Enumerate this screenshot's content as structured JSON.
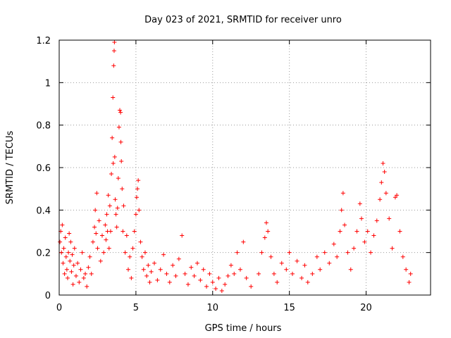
{
  "chart_data": {
    "type": "scatter",
    "title": "Day 023 of 2021, SRMTID for receiver unro",
    "xlabel": "GPS time / hours",
    "ylabel": "SRMTID / TECUs",
    "xlim": [
      0,
      24.2
    ],
    "ylim": [
      0,
      1.2
    ],
    "x_ticks": [
      0,
      5,
      10,
      15,
      20
    ],
    "y_ticks": [
      0,
      0.2,
      0.4,
      0.6,
      0.8,
      1.0,
      1.2
    ],
    "x_tick_labels": [
      "0",
      "5",
      "10",
      "15",
      "20"
    ],
    "y_tick_labels": [
      "0",
      "0.2",
      "0.4",
      "0.6",
      "0.8",
      "1",
      "1.2"
    ],
    "grid": true,
    "marker": "plus",
    "color": "#ff0000",
    "series": [
      {
        "name": "SRMTID",
        "points": [
          [
            0.05,
            0.25
          ],
          [
            0.1,
            0.3
          ],
          [
            0.15,
            0.2
          ],
          [
            0.2,
            0.33
          ],
          [
            0.25,
            0.15
          ],
          [
            0.3,
            0.22
          ],
          [
            0.35,
            0.1
          ],
          [
            0.4,
            0.27
          ],
          [
            0.45,
            0.18
          ],
          [
            0.5,
            0.12
          ],
          [
            0.55,
            0.08
          ],
          [
            0.6,
            0.2
          ],
          [
            0.65,
            0.29
          ],
          [
            0.7,
            0.16
          ],
          [
            0.75,
            0.25
          ],
          [
            0.8,
            0.11
          ],
          [
            0.85,
            0.19
          ],
          [
            0.9,
            0.05
          ],
          [
            0.95,
            0.14
          ],
          [
            1.0,
            0.22
          ],
          [
            1.1,
            0.09
          ],
          [
            1.2,
            0.15
          ],
          [
            1.3,
            0.06
          ],
          [
            1.4,
            0.12
          ],
          [
            1.5,
            0.2
          ],
          [
            1.6,
            0.08
          ],
          [
            1.7,
            0.1
          ],
          [
            1.8,
            0.04
          ],
          [
            1.9,
            0.13
          ],
          [
            2.0,
            0.18
          ],
          [
            2.1,
            0.1
          ],
          [
            2.2,
            0.25
          ],
          [
            2.3,
            0.32
          ],
          [
            2.35,
            0.4
          ],
          [
            2.4,
            0.29
          ],
          [
            2.45,
            0.48
          ],
          [
            2.5,
            0.22
          ],
          [
            2.6,
            0.35
          ],
          [
            2.7,
            0.16
          ],
          [
            2.8,
            0.28
          ],
          [
            2.9,
            0.2
          ],
          [
            3.0,
            0.33
          ],
          [
            3.05,
            0.26
          ],
          [
            3.1,
            0.38
          ],
          [
            3.15,
            0.3
          ],
          [
            3.2,
            0.47
          ],
          [
            3.25,
            0.22
          ],
          [
            3.3,
            0.42
          ],
          [
            3.35,
            0.3
          ],
          [
            3.4,
            0.57
          ],
          [
            3.45,
            0.74
          ],
          [
            3.5,
            0.93
          ],
          [
            3.52,
            0.62
          ],
          [
            3.55,
            1.08
          ],
          [
            3.58,
            1.15
          ],
          [
            3.6,
            1.19
          ],
          [
            3.62,
            0.65
          ],
          [
            3.65,
            0.45
          ],
          [
            3.7,
            0.38
          ],
          [
            3.75,
            0.32
          ],
          [
            3.8,
            0.41
          ],
          [
            3.85,
            0.55
          ],
          [
            3.9,
            0.79
          ],
          [
            3.95,
            0.87
          ],
          [
            4.0,
            0.86
          ],
          [
            4.02,
            0.72
          ],
          [
            4.05,
            0.63
          ],
          [
            4.1,
            0.5
          ],
          [
            4.15,
            0.3
          ],
          [
            4.2,
            0.42
          ],
          [
            4.3,
            0.2
          ],
          [
            4.4,
            0.28
          ],
          [
            4.5,
            0.12
          ],
          [
            4.6,
            0.18
          ],
          [
            4.7,
            0.08
          ],
          [
            4.8,
            0.22
          ],
          [
            4.9,
            0.3
          ],
          [
            5.0,
            0.38
          ],
          [
            5.05,
            0.46
          ],
          [
            5.1,
            0.5
          ],
          [
            5.15,
            0.54
          ],
          [
            5.2,
            0.4
          ],
          [
            5.3,
            0.25
          ],
          [
            5.4,
            0.18
          ],
          [
            5.5,
            0.12
          ],
          [
            5.6,
            0.2
          ],
          [
            5.7,
            0.09
          ],
          [
            5.8,
            0.14
          ],
          [
            5.9,
            0.06
          ],
          [
            6.0,
            0.11
          ],
          [
            6.2,
            0.15
          ],
          [
            6.4,
            0.07
          ],
          [
            6.6,
            0.12
          ],
          [
            6.8,
            0.19
          ],
          [
            7.0,
            0.1
          ],
          [
            7.2,
            0.06
          ],
          [
            7.4,
            0.14
          ],
          [
            7.6,
            0.09
          ],
          [
            7.8,
            0.17
          ],
          [
            8.0,
            0.28
          ],
          [
            8.2,
            0.1
          ],
          [
            8.4,
            0.05
          ],
          [
            8.6,
            0.13
          ],
          [
            8.8,
            0.09
          ],
          [
            9.0,
            0.15
          ],
          [
            9.2,
            0.07
          ],
          [
            9.4,
            0.12
          ],
          [
            9.6,
            0.04
          ],
          [
            9.8,
            0.1
          ],
          [
            10.0,
            0.06
          ],
          [
            10.2,
            0.03
          ],
          [
            10.4,
            0.08
          ],
          [
            10.6,
            0.02
          ],
          [
            10.8,
            0.05
          ],
          [
            11.0,
            0.09
          ],
          [
            11.2,
            0.14
          ],
          [
            11.4,
            0.1
          ],
          [
            11.6,
            0.2
          ],
          [
            11.8,
            0.12
          ],
          [
            12.0,
            0.25
          ],
          [
            12.2,
            0.08
          ],
          [
            12.5,
            0.04
          ],
          [
            13.0,
            0.1
          ],
          [
            13.2,
            0.2
          ],
          [
            13.4,
            0.27
          ],
          [
            13.5,
            0.34
          ],
          [
            13.6,
            0.3
          ],
          [
            13.8,
            0.18
          ],
          [
            14.0,
            0.1
          ],
          [
            14.2,
            0.06
          ],
          [
            14.5,
            0.15
          ],
          [
            14.8,
            0.12
          ],
          [
            15.0,
            0.2
          ],
          [
            15.2,
            0.1
          ],
          [
            15.5,
            0.16
          ],
          [
            15.8,
            0.08
          ],
          [
            16.0,
            0.14
          ],
          [
            16.2,
            0.06
          ],
          [
            16.5,
            0.1
          ],
          [
            16.8,
            0.18
          ],
          [
            17.0,
            0.12
          ],
          [
            17.3,
            0.2
          ],
          [
            17.6,
            0.15
          ],
          [
            17.9,
            0.24
          ],
          [
            18.1,
            0.18
          ],
          [
            18.3,
            0.3
          ],
          [
            18.4,
            0.4
          ],
          [
            18.5,
            0.48
          ],
          [
            18.6,
            0.33
          ],
          [
            18.8,
            0.2
          ],
          [
            19.0,
            0.12
          ],
          [
            19.2,
            0.22
          ],
          [
            19.4,
            0.3
          ],
          [
            19.6,
            0.43
          ],
          [
            19.7,
            0.36
          ],
          [
            19.9,
            0.25
          ],
          [
            20.1,
            0.3
          ],
          [
            20.3,
            0.2
          ],
          [
            20.5,
            0.28
          ],
          [
            20.7,
            0.35
          ],
          [
            20.9,
            0.45
          ],
          [
            21.0,
            0.53
          ],
          [
            21.1,
            0.62
          ],
          [
            21.2,
            0.58
          ],
          [
            21.3,
            0.48
          ],
          [
            21.5,
            0.36
          ],
          [
            21.7,
            0.22
          ],
          [
            21.9,
            0.46
          ],
          [
            22.0,
            0.47
          ],
          [
            22.2,
            0.3
          ],
          [
            22.4,
            0.18
          ],
          [
            22.6,
            0.12
          ],
          [
            22.8,
            0.06
          ],
          [
            22.9,
            0.1
          ]
        ]
      }
    ]
  }
}
